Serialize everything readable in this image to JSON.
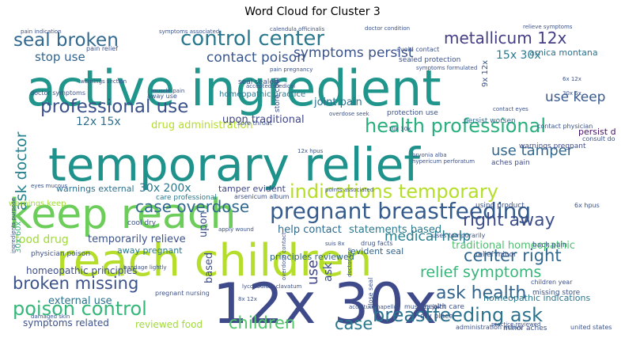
{
  "chart_data": {
    "type": "wordcloud",
    "title": "Word Cloud for Cluster 3",
    "background": "#ffffff",
    "colormap": "viridis",
    "words": [
      {
        "text": "active ingredient",
        "weight": 1.0
      },
      {
        "text": "temporary relief",
        "weight": 0.95
      },
      {
        "text": "keep reach",
        "weight": 0.9
      },
      {
        "text": "reach children",
        "weight": 0.92
      },
      {
        "text": "12x 30x",
        "weight": 0.95
      },
      {
        "text": "pregnant breastfeeding",
        "weight": 0.6
      },
      {
        "text": "control center",
        "weight": 0.5
      },
      {
        "text": "indications temporary",
        "weight": 0.5
      },
      {
        "text": "health professional",
        "weight": 0.5
      },
      {
        "text": "professional use",
        "weight": 0.5
      },
      {
        "text": "poison control",
        "weight": 0.45
      },
      {
        "text": "breastfeeding ask",
        "weight": 0.45
      },
      {
        "text": "seal broken",
        "weight": 0.45
      },
      {
        "text": "metallicum 12x",
        "weight": 0.4
      },
      {
        "text": "broken missing",
        "weight": 0.4
      },
      {
        "text": "ask health",
        "weight": 0.4
      },
      {
        "text": "right away",
        "weight": 0.4
      },
      {
        "text": "case overdose",
        "weight": 0.38
      },
      {
        "text": "center right",
        "weight": 0.38
      },
      {
        "text": "relief symptoms",
        "weight": 0.35
      },
      {
        "text": "children",
        "weight": 0.38
      },
      {
        "text": "case",
        "weight": 0.35
      },
      {
        "text": "ask doctor",
        "weight": 0.35
      },
      {
        "text": "use tamper",
        "weight": 0.3
      },
      {
        "text": "use keep",
        "weight": 0.3
      },
      {
        "text": "symptoms persist",
        "weight": 0.3
      },
      {
        "text": "contact poison",
        "weight": 0.3
      },
      {
        "text": "stop use",
        "weight": 0.28
      },
      {
        "text": "medical help",
        "weight": 0.3
      },
      {
        "text": "help contact",
        "weight": 0.25
      },
      {
        "text": "statements based",
        "weight": 0.25
      },
      {
        "text": "temporarily relieve",
        "weight": 0.22
      },
      {
        "text": "12x 15x",
        "weight": 0.22
      },
      {
        "text": "15x 30x",
        "weight": 0.2
      },
      {
        "text": "30x 200x",
        "weight": 0.2
      },
      {
        "text": "drug administration",
        "weight": 0.2
      },
      {
        "text": "food drug",
        "weight": 0.22
      },
      {
        "text": "joint pain",
        "weight": 0.2
      },
      {
        "text": "traditional homeopathic",
        "weight": 0.2
      },
      {
        "text": "homeopathic principles",
        "weight": 0.18
      },
      {
        "text": "external use",
        "weight": 0.18
      },
      {
        "text": "symptoms related",
        "weight": 0.18
      },
      {
        "text": "reviewed food",
        "weight": 0.18
      },
      {
        "text": "warnings external",
        "weight": 0.16
      },
      {
        "text": "warnings keep",
        "weight": 0.15
      },
      {
        "text": "arnica montana",
        "weight": 0.15
      },
      {
        "text": "persist day",
        "weight": 0.14
      },
      {
        "text": "tamper evident",
        "weight": 0.14
      },
      {
        "text": "away pregnant",
        "weight": 0.14
      },
      {
        "text": "principles reviewed",
        "weight": 0.14
      },
      {
        "text": "evident seal",
        "weight": 0.14
      },
      {
        "text": "homeopathic indications",
        "weight": 0.14
      },
      {
        "text": "upon",
        "weight": 0.14
      },
      {
        "text": "based",
        "weight": 0.15
      },
      {
        "text": "use",
        "weight": 0.18
      },
      {
        "text": "ask",
        "weight": 0.16
      },
      {
        "text": "homeopathic practice",
        "weight": 0.1
      },
      {
        "text": "protection use",
        "weight": 0.08
      },
      {
        "text": "persist worsen",
        "weight": 0.08
      },
      {
        "text": "aches pain",
        "weight": 0.09
      },
      {
        "text": "warnings pregnant",
        "weight": 0.08
      },
      {
        "text": "30x 60x",
        "weight": 0.1
      },
      {
        "text": "care professional",
        "weight": 0.08
      },
      {
        "text": "arsenicum album",
        "weight": 0.07
      },
      {
        "text": "missing store",
        "weight": 0.08
      },
      {
        "text": "minor aches",
        "weight": 0.08
      },
      {
        "text": "administration active",
        "weight": 0.08
      },
      {
        "text": "united states",
        "weight": 0.07
      },
      {
        "text": "children year",
        "weight": 0.07
      },
      {
        "text": "dry place",
        "weight": 0.07
      },
      {
        "text": "health care",
        "weight": 0.07
      },
      {
        "text": "muscles joint",
        "weight": 0.06
      },
      {
        "text": "using product",
        "weight": 0.07
      },
      {
        "text": "back pain",
        "weight": 0.06
      },
      {
        "text": "relief minor",
        "weight": 0.06
      },
      {
        "text": "cool dry",
        "weight": 0.06
      },
      {
        "text": "6x hpus",
        "weight": 0.06
      },
      {
        "text": "drug facts",
        "weight": 0.06
      },
      {
        "text": "sealed protection",
        "weight": 0.06
      },
      {
        "text": "pain relief",
        "weight": 0.06
      },
      {
        "text": "seal sealed",
        "weight": 0.06
      },
      {
        "text": "physician poison",
        "weight": 0.06
      },
      {
        "text": "uses temporarily",
        "weight": 0.06
      },
      {
        "text": "consult doctor",
        "weight": 0.06
      },
      {
        "text": "contact physician",
        "weight": 0.06
      },
      {
        "text": "store cool",
        "weight": 0.06
      },
      {
        "text": "9x 12x",
        "weight": 0.06
      },
      {
        "text": "doctor symptoms",
        "weight": 0.06
      },
      {
        "text": "away use",
        "weight": 0.06
      },
      {
        "text": "practice reviewed",
        "weight": 0.05
      },
      {
        "text": "sore throat",
        "weight": 0.05
      },
      {
        "text": "overdose contact",
        "weight": 0.05
      },
      {
        "text": "pregnant nursing",
        "weight": 0.05
      },
      {
        "text": "hypericum perforatum",
        "weight": 0.05
      },
      {
        "text": "avoid contact",
        "weight": 0.05
      },
      {
        "text": "symptoms associated",
        "weight": 0.05
      },
      {
        "text": "calendula officinalis",
        "weight": 0.05
      },
      {
        "text": "warnings section",
        "weight": 0.05
      },
      {
        "text": "muscle pain",
        "weight": 0.05
      },
      {
        "text": "10x 30x",
        "weight": 0.05
      },
      {
        "text": "12x hpus",
        "weight": 0.05
      },
      {
        "text": "bryonia alba",
        "weight": 0.05
      },
      {
        "text": "lycopodium clavatum",
        "weight": 0.05
      },
      {
        "text": "bandage lightly",
        "weight": 0.05
      },
      {
        "text": "accepted medical",
        "weight": 0.05
      },
      {
        "text": "damaged skin",
        "weight": 0.05
      },
      {
        "text": "pain indication",
        "weight": 0.05
      },
      {
        "text": "aconitum napellus",
        "weight": 0.05
      },
      {
        "text": "apply wound",
        "weight": 0.05
      },
      {
        "text": "suis 8x",
        "weight": 0.05
      },
      {
        "text": "8x 12x",
        "weight": 0.05
      },
      {
        "text": "6x 12x",
        "weight": 0.05
      },
      {
        "text": "eyes mucous",
        "weight": 0.05
      },
      {
        "text": "points associated",
        "weight": 0.05
      },
      {
        "text": "close seal",
        "weight": 0.05
      },
      {
        "text": "ingredients purpose",
        "weight": 0.05
      },
      {
        "text": "doctor condition",
        "weight": 0.05
      },
      {
        "text": "relieve symptoms",
        "weight": 0.05
      },
      {
        "text": "symptoms formulated",
        "weight": 0.05
      },
      {
        "text": "contact eyes",
        "weight": 0.05
      },
      {
        "text": "upon traditional",
        "weight": 0.06
      },
      {
        "text": "overdose seek",
        "weight": 0.05
      },
      {
        "text": "doctor use",
        "weight": 0.05
      },
      {
        "text": "pain pregnancy",
        "weight": 0.05
      },
      {
        "text": "30x 6x",
        "weight": 0.05
      }
    ]
  }
}
